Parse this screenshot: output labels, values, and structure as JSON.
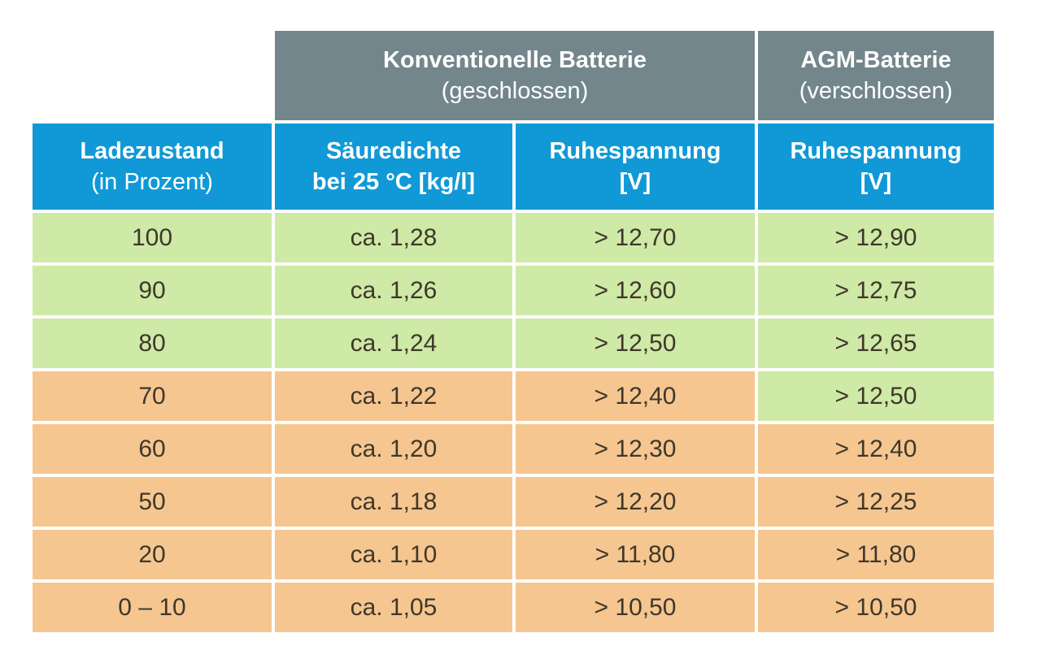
{
  "colors": {
    "header_gray": "#72868b",
    "header_blue": "#1099d6",
    "row_green": "#cfe9a6",
    "row_orange": "#f6c690",
    "text_dark": "#3e382b",
    "header_text": "#ffffff"
  },
  "chart_data": {
    "type": "table",
    "group_headers": [
      {
        "label": "Konventionelle Batterie",
        "sub": "(geschlossen)",
        "span": 2
      },
      {
        "label": "AGM-Batterie",
        "sub": "(verschlossen)",
        "span": 1
      }
    ],
    "column_headers": [
      {
        "line1": "Ladezustand",
        "line2": "(in Prozent)"
      },
      {
        "line1": "Säuredichte",
        "line2": "bei 25 °C [kg/l]"
      },
      {
        "line1": "Ruhespannung",
        "line2": "[V]"
      },
      {
        "line1": "Ruhespannung",
        "line2": "[V]"
      }
    ],
    "rows": [
      {
        "cells": [
          "100",
          "ca. 1,28",
          "> 12,70",
          "> 12,90"
        ],
        "colors": [
          "green",
          "green",
          "green",
          "green"
        ]
      },
      {
        "cells": [
          "90",
          "ca. 1,26",
          "> 12,60",
          "> 12,75"
        ],
        "colors": [
          "green",
          "green",
          "green",
          "green"
        ]
      },
      {
        "cells": [
          "80",
          "ca. 1,24",
          "> 12,50",
          "> 12,65"
        ],
        "colors": [
          "green",
          "green",
          "green",
          "green"
        ]
      },
      {
        "cells": [
          "70",
          "ca. 1,22",
          "> 12,40",
          "> 12,50"
        ],
        "colors": [
          "orange",
          "orange",
          "orange",
          "green"
        ]
      },
      {
        "cells": [
          "60",
          "ca. 1,20",
          "> 12,30",
          "> 12,40"
        ],
        "colors": [
          "orange",
          "orange",
          "orange",
          "orange"
        ]
      },
      {
        "cells": [
          "50",
          "ca. 1,18",
          "> 12,20",
          "> 12,25"
        ],
        "colors": [
          "orange",
          "orange",
          "orange",
          "orange"
        ]
      },
      {
        "cells": [
          "20",
          "ca. 1,10",
          "> 11,80",
          "> 11,80"
        ],
        "colors": [
          "orange",
          "orange",
          "orange",
          "orange"
        ]
      },
      {
        "cells": [
          "0 – 10",
          "ca. 1,05",
          "> 10,50",
          "> 10,50"
        ],
        "colors": [
          "orange",
          "orange",
          "orange",
          "orange"
        ]
      }
    ]
  }
}
